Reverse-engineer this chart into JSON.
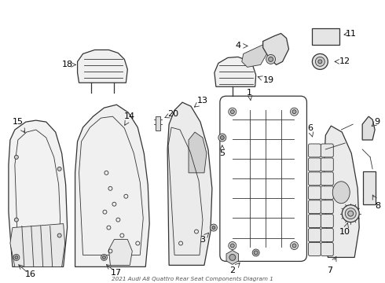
{
  "title": "2021 Audi A8 Quattro Rear Seat Components Diagram 1",
  "background_color": "#ffffff",
  "line_color": "#333333",
  "label_color": "#000000",
  "fig_width": 4.9,
  "fig_height": 3.6,
  "dpi": 100
}
